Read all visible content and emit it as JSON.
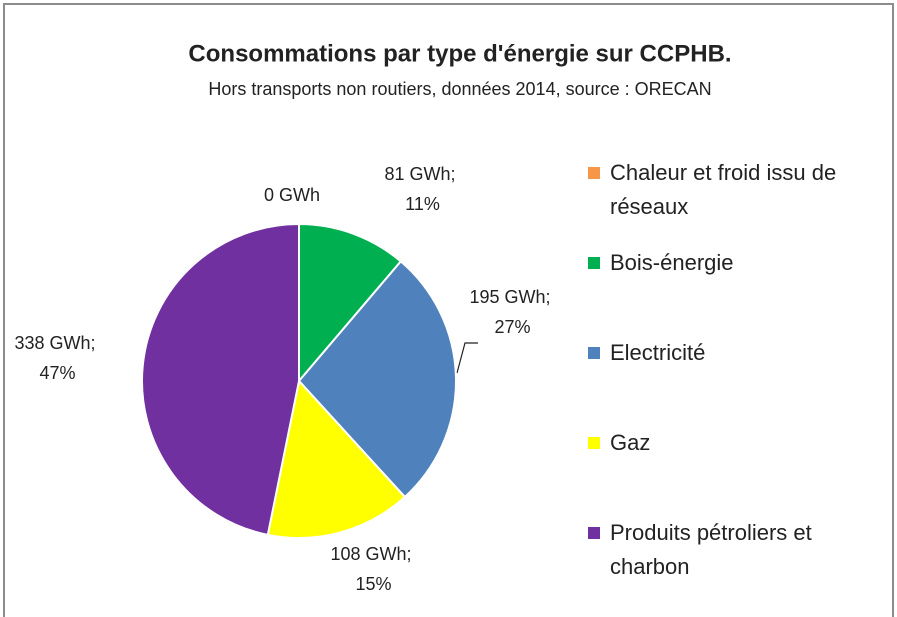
{
  "chart_data": {
    "type": "pie",
    "title": "Consommations par type d'énergie sur CCPHB.",
    "subtitle": "Hors transports non routiers, données 2014, source : ORECAN",
    "categories": [
      "Chaleur et froid issu de réseaux",
      "Bois-énergie",
      "Electricité",
      "Gaz",
      "Produits pétroliers et charbon"
    ],
    "values": [
      0,
      81,
      195,
      108,
      338
    ],
    "value_labels": [
      "0 GWh",
      "81 GWh; 11%",
      "195 GWh; 27%",
      "108 GWh; 15%",
      "338 GWh; 47%"
    ],
    "colors": [
      "#f79646",
      "#00b050",
      "#4f81bd",
      "#ffff00",
      "#7030a0"
    ],
    "legend": "right"
  }
}
